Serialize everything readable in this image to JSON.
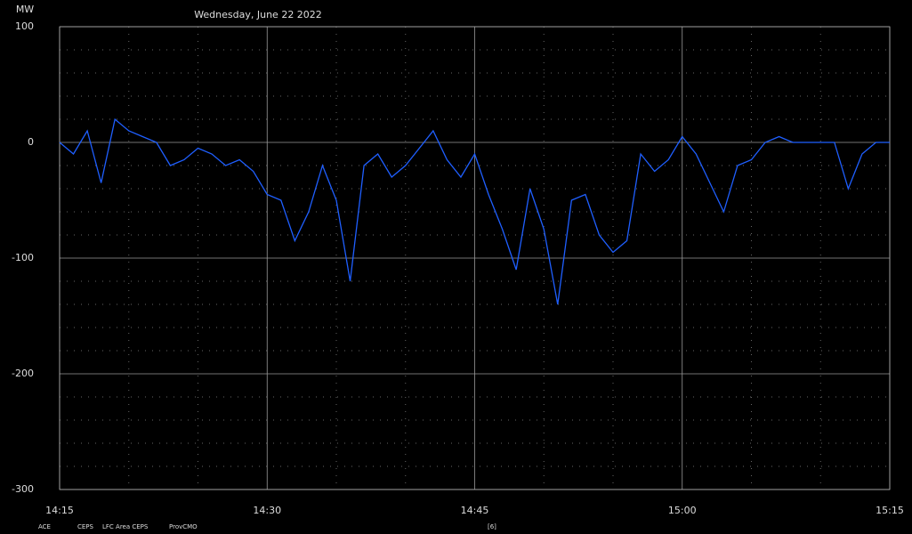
{
  "chart_data": {
    "type": "line",
    "title": "Wednesday, June 22 2022",
    "y_label": "MW",
    "x": [
      "14:15",
      "14:16",
      "14:17",
      "14:18",
      "14:19",
      "14:20",
      "14:21",
      "14:22",
      "14:23",
      "14:24",
      "14:25",
      "14:26",
      "14:27",
      "14:28",
      "14:29",
      "14:30",
      "14:31",
      "14:32",
      "14:33",
      "14:34",
      "14:35",
      "14:36",
      "14:37",
      "14:38",
      "14:39",
      "14:40",
      "14:41",
      "14:42",
      "14:43",
      "14:44",
      "14:45",
      "14:46",
      "14:47",
      "14:48",
      "14:49",
      "14:50",
      "14:51",
      "14:52",
      "14:53",
      "14:54",
      "14:55",
      "14:56",
      "14:57",
      "14:58",
      "14:59",
      "15:00",
      "15:01",
      "15:02",
      "15:03",
      "15:04",
      "15:05",
      "15:06",
      "15:07",
      "15:08",
      "15:09",
      "15:10",
      "15:11",
      "15:12",
      "15:13",
      "15:14",
      "15:15"
    ],
    "series": [
      {
        "name": "ACE",
        "color": "#1f5fff",
        "values": [
          0,
          -10,
          10,
          -35,
          20,
          10,
          5,
          0,
          -20,
          -15,
          -5,
          -10,
          -20,
          -15,
          -25,
          -45,
          -50,
          -85,
          -60,
          -20,
          -50,
          -120,
          -20,
          -10,
          -30,
          -20,
          -5,
          10,
          -15,
          -30,
          -10,
          -45,
          -75,
          -110,
          -40,
          -75,
          -140,
          -50,
          -45,
          -80,
          -95,
          -85,
          -10,
          -25,
          -15,
          5,
          -10,
          -35,
          -60,
          -20,
          -15,
          0,
          5,
          0,
          0,
          0,
          0,
          -40,
          -10,
          0,
          0
        ]
      }
    ],
    "legend_items": [
      "CEPS",
      "LFC Area CEPS",
      "ProvCMO",
      "[6]"
    ],
    "xlim": [
      "14:15",
      "15:15"
    ],
    "xticks": [
      "14:15",
      "14:30",
      "14:45",
      "15:00",
      "15:15"
    ],
    "minor_xticks": [
      "14:20",
      "14:25",
      "14:35",
      "14:40",
      "14:50",
      "14:55",
      "15:05",
      "15:10"
    ],
    "ylim": [
      -300,
      100
    ],
    "yticks": [
      100,
      0,
      -100,
      -200,
      -300
    ],
    "minor_yticks": [
      80,
      60,
      40,
      20,
      -20,
      -40,
      -60,
      -80,
      -120,
      -140,
      -160,
      -180,
      -220,
      -240,
      -260,
      -280
    ],
    "grid": true
  }
}
